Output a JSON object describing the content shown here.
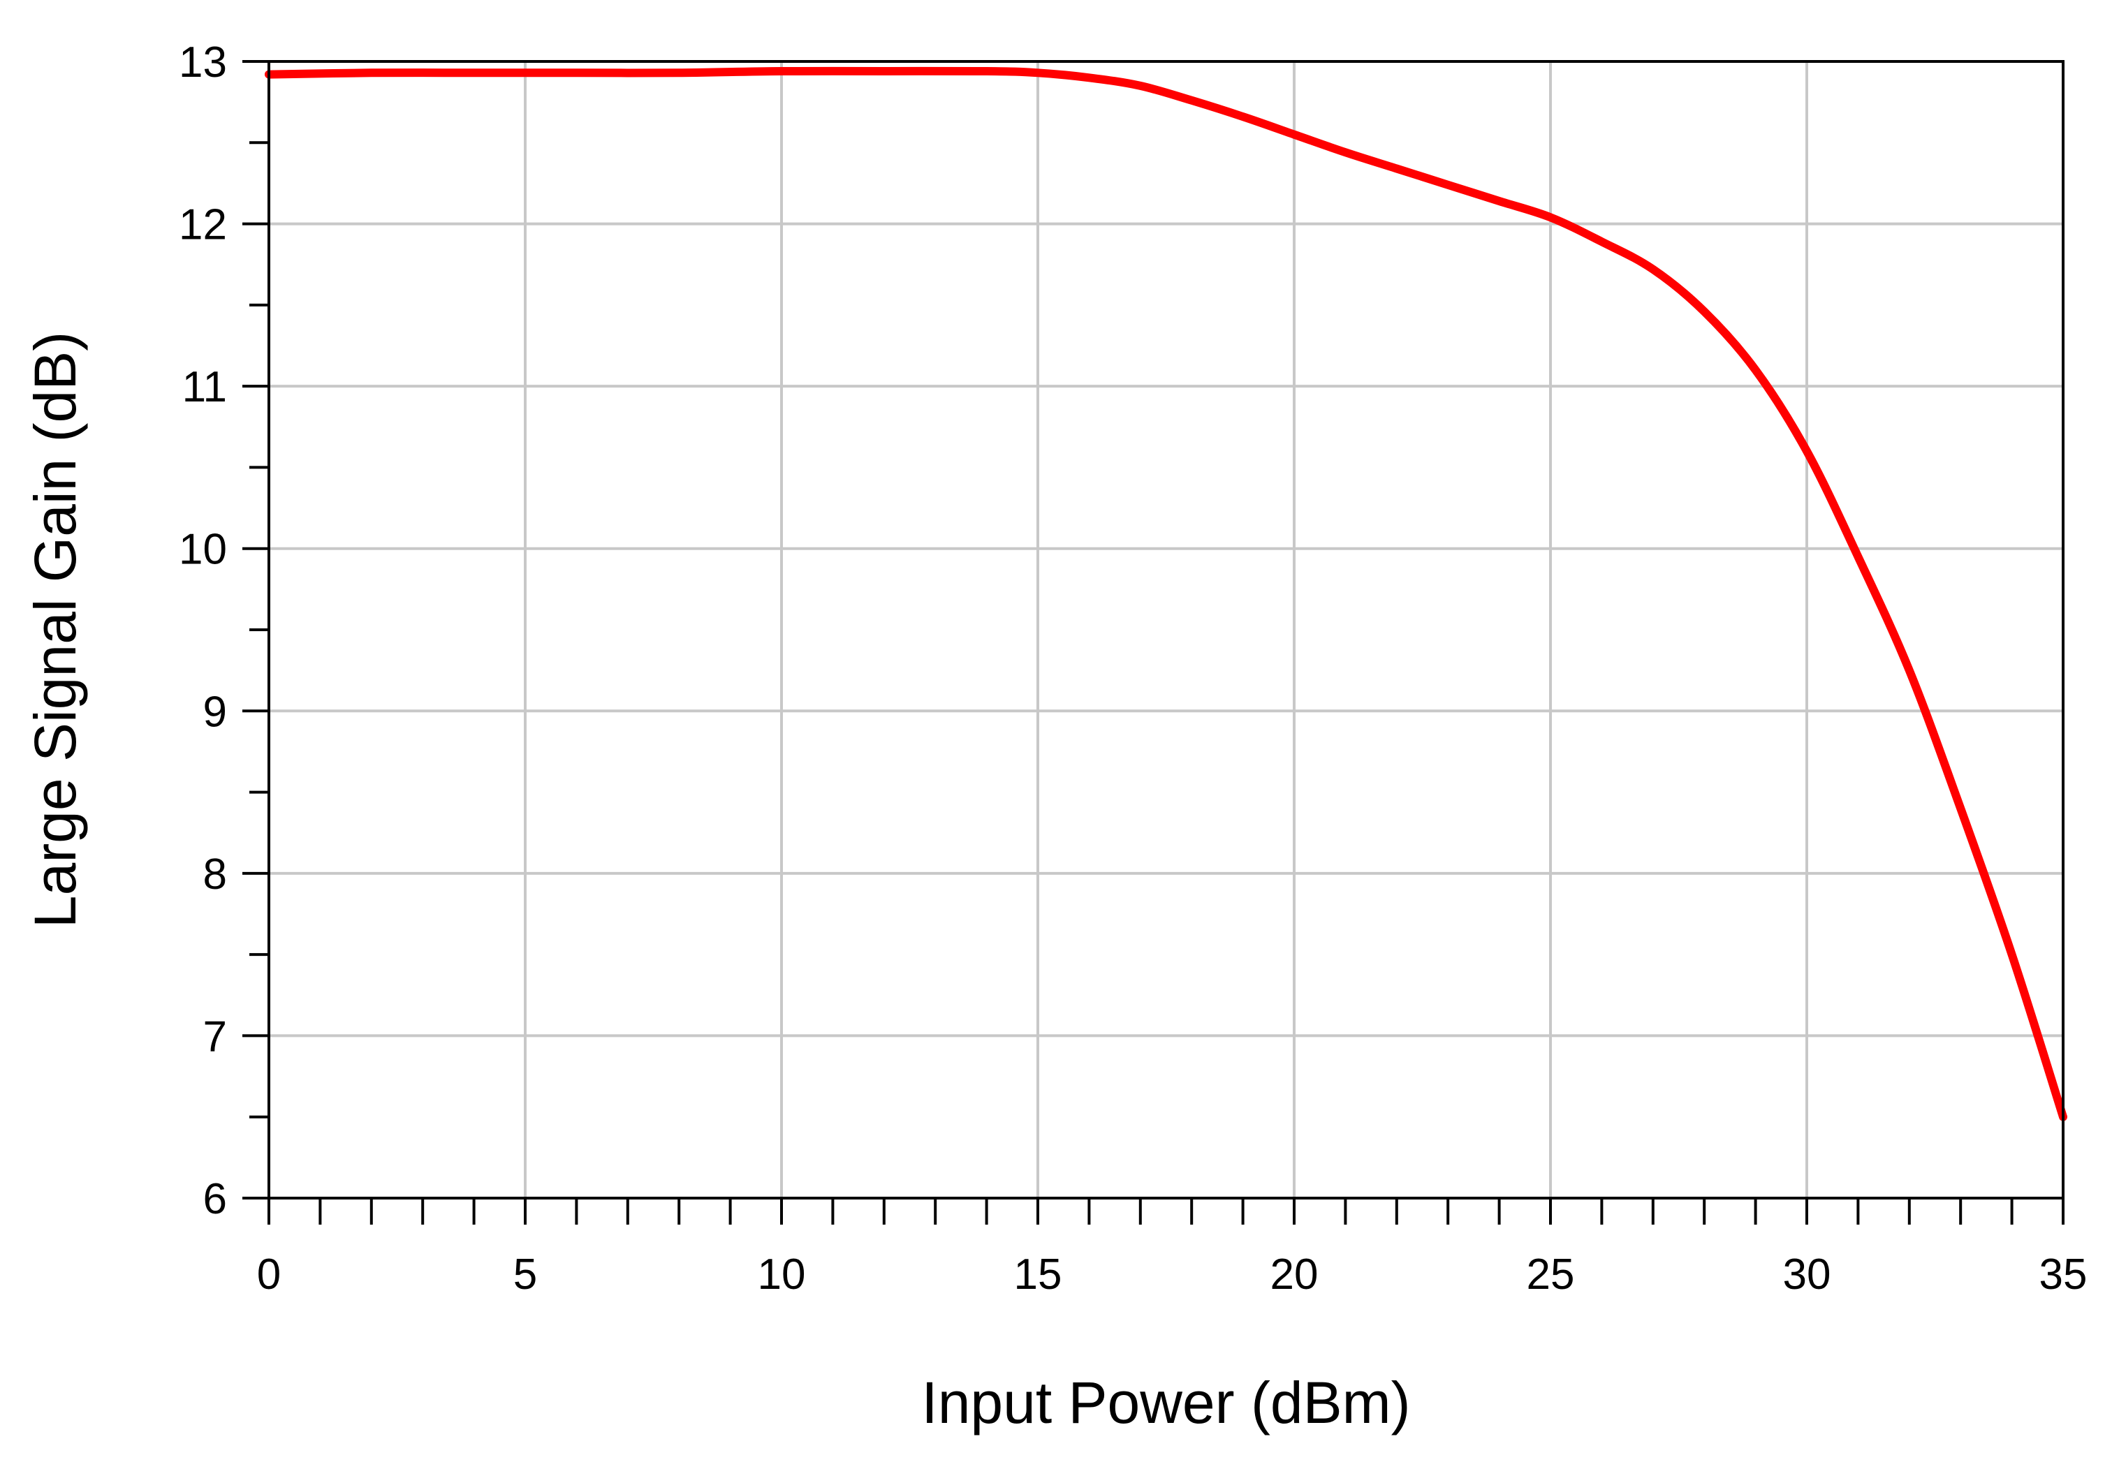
{
  "chart_data": {
    "type": "line",
    "title": "",
    "xlabel": "Input Power (dBm)",
    "ylabel": "Large Signal Gain (dB)",
    "xlim": [
      0,
      35
    ],
    "ylim": [
      6,
      13
    ],
    "x_ticks": [
      0,
      5,
      10,
      15,
      20,
      25,
      30,
      35
    ],
    "y_ticks": [
      6,
      7,
      8,
      9,
      10,
      11,
      12,
      13
    ],
    "x_minor_step": 1,
    "y_minor_step": 0.5,
    "grid": true,
    "legend": "none",
    "series": [
      {
        "color": "#ff0000",
        "x": [
          0,
          2,
          4,
          6,
          8,
          10,
          12,
          14,
          15,
          16,
          17,
          18,
          19,
          20,
          21,
          22,
          23,
          24,
          25,
          26,
          27,
          28,
          29,
          30,
          31,
          32,
          33,
          34,
          35
        ],
        "y": [
          12.92,
          12.93,
          12.93,
          12.93,
          12.93,
          12.94,
          12.94,
          12.94,
          12.93,
          12.9,
          12.85,
          12.76,
          12.66,
          12.55,
          12.44,
          12.34,
          12.24,
          12.14,
          12.04,
          11.89,
          11.72,
          11.46,
          11.1,
          10.6,
          9.95,
          9.25,
          8.4,
          7.5,
          6.5
        ]
      }
    ]
  }
}
